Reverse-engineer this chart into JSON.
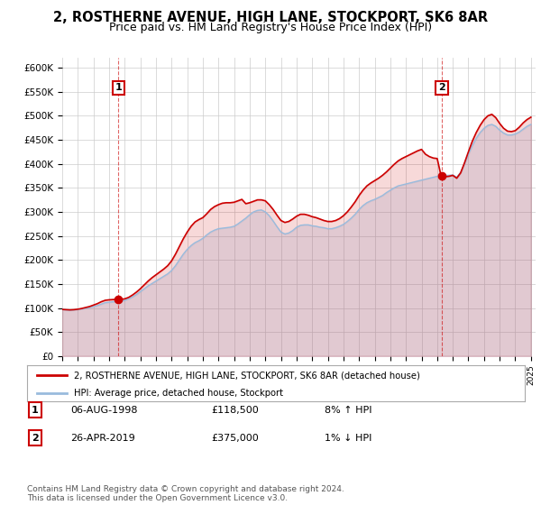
{
  "title": "2, ROSTHERNE AVENUE, HIGH LANE, STOCKPORT, SK6 8AR",
  "subtitle": "Price paid vs. HM Land Registry's House Price Index (HPI)",
  "title_fontsize": 10.5,
  "subtitle_fontsize": 9,
  "background_color": "#ffffff",
  "plot_bg_color": "#ffffff",
  "grid_color": "#cccccc",
  "ylim": [
    0,
    620000
  ],
  "yticks": [
    0,
    50000,
    100000,
    150000,
    200000,
    250000,
    300000,
    350000,
    400000,
    450000,
    500000,
    550000,
    600000
  ],
  "ytick_labels": [
    "£0",
    "£50K",
    "£100K",
    "£150K",
    "£200K",
    "£250K",
    "£300K",
    "£350K",
    "£400K",
    "£450K",
    "£500K",
    "£550K",
    "£600K"
  ],
  "sale1_year": 1998.6,
  "sale1_price": 118500,
  "sale2_year": 2019.3,
  "sale2_price": 375000,
  "sale_color": "#cc0000",
  "hpi_color": "#99bbdd",
  "house_color": "#cc0000",
  "legend_house": "2, ROSTHERNE AVENUE, HIGH LANE, STOCKPORT, SK6 8AR (detached house)",
  "legend_hpi": "HPI: Average price, detached house, Stockport",
  "annotation1_box": "1",
  "annotation1_date": "06-AUG-1998",
  "annotation1_price": "£118,500",
  "annotation1_hpi": "8% ↑ HPI",
  "annotation2_box": "2",
  "annotation2_date": "26-APR-2019",
  "annotation2_price": "£375,000",
  "annotation2_hpi": "1% ↓ HPI",
  "footer": "Contains HM Land Registry data © Crown copyright and database right 2024.\nThis data is licensed under the Open Government Licence v3.0.",
  "hpi_data": [
    [
      1995.0,
      97000
    ],
    [
      1995.25,
      96000
    ],
    [
      1995.5,
      95500
    ],
    [
      1995.75,
      96000
    ],
    [
      1996.0,
      97000
    ],
    [
      1996.25,
      98000
    ],
    [
      1996.5,
      99500
    ],
    [
      1996.75,
      101000
    ],
    [
      1997.0,
      103000
    ],
    [
      1997.25,
      105000
    ],
    [
      1997.5,
      108000
    ],
    [
      1997.75,
      111000
    ],
    [
      1998.0,
      112000
    ],
    [
      1998.25,
      113000
    ],
    [
      1998.5,
      113500
    ],
    [
      1998.75,
      114000
    ],
    [
      1999.0,
      116000
    ],
    [
      1999.25,
      119000
    ],
    [
      1999.5,
      123000
    ],
    [
      1999.75,
      128000
    ],
    [
      2000.0,
      134000
    ],
    [
      2000.25,
      140000
    ],
    [
      2000.5,
      146000
    ],
    [
      2000.75,
      151000
    ],
    [
      2001.0,
      156000
    ],
    [
      2001.25,
      161000
    ],
    [
      2001.5,
      166000
    ],
    [
      2001.75,
      171000
    ],
    [
      2002.0,
      178000
    ],
    [
      2002.25,
      188000
    ],
    [
      2002.5,
      200000
    ],
    [
      2002.75,
      212000
    ],
    [
      2003.0,
      222000
    ],
    [
      2003.25,
      230000
    ],
    [
      2003.5,
      236000
    ],
    [
      2003.75,
      240000
    ],
    [
      2004.0,
      245000
    ],
    [
      2004.25,
      252000
    ],
    [
      2004.5,
      258000
    ],
    [
      2004.75,
      262000
    ],
    [
      2005.0,
      265000
    ],
    [
      2005.25,
      266000
    ],
    [
      2005.5,
      267000
    ],
    [
      2005.75,
      268000
    ],
    [
      2006.0,
      270000
    ],
    [
      2006.25,
      275000
    ],
    [
      2006.5,
      281000
    ],
    [
      2006.75,
      287000
    ],
    [
      2007.0,
      294000
    ],
    [
      2007.25,
      300000
    ],
    [
      2007.5,
      303000
    ],
    [
      2007.75,
      304000
    ],
    [
      2008.0,
      300000
    ],
    [
      2008.25,
      292000
    ],
    [
      2008.5,
      281000
    ],
    [
      2008.75,
      269000
    ],
    [
      2009.0,
      258000
    ],
    [
      2009.25,
      254000
    ],
    [
      2009.5,
      256000
    ],
    [
      2009.75,
      261000
    ],
    [
      2010.0,
      268000
    ],
    [
      2010.25,
      272000
    ],
    [
      2010.5,
      273000
    ],
    [
      2010.75,
      273000
    ],
    [
      2011.0,
      271000
    ],
    [
      2011.25,
      270000
    ],
    [
      2011.5,
      268000
    ],
    [
      2011.75,
      267000
    ],
    [
      2012.0,
      265000
    ],
    [
      2012.25,
      265000
    ],
    [
      2012.5,
      267000
    ],
    [
      2012.75,
      270000
    ],
    [
      2013.0,
      274000
    ],
    [
      2013.25,
      280000
    ],
    [
      2013.5,
      287000
    ],
    [
      2013.75,
      295000
    ],
    [
      2014.0,
      305000
    ],
    [
      2014.25,
      313000
    ],
    [
      2014.5,
      319000
    ],
    [
      2014.75,
      323000
    ],
    [
      2015.0,
      326000
    ],
    [
      2015.25,
      330000
    ],
    [
      2015.5,
      334000
    ],
    [
      2015.75,
      340000
    ],
    [
      2016.0,
      345000
    ],
    [
      2016.25,
      350000
    ],
    [
      2016.5,
      354000
    ],
    [
      2016.75,
      356000
    ],
    [
      2017.0,
      358000
    ],
    [
      2017.25,
      360000
    ],
    [
      2017.5,
      362000
    ],
    [
      2017.75,
      364000
    ],
    [
      2018.0,
      366000
    ],
    [
      2018.25,
      368000
    ],
    [
      2018.5,
      370000
    ],
    [
      2018.75,
      372000
    ],
    [
      2019.0,
      374000
    ],
    [
      2019.25,
      376000
    ],
    [
      2019.5,
      376000
    ],
    [
      2019.75,
      376000
    ],
    [
      2020.0,
      377000
    ],
    [
      2020.25,
      372000
    ],
    [
      2020.5,
      382000
    ],
    [
      2020.75,
      400000
    ],
    [
      2021.0,
      420000
    ],
    [
      2021.25,
      438000
    ],
    [
      2021.5,
      453000
    ],
    [
      2021.75,
      465000
    ],
    [
      2022.0,
      474000
    ],
    [
      2022.25,
      480000
    ],
    [
      2022.5,
      482000
    ],
    [
      2022.75,
      478000
    ],
    [
      2023.0,
      470000
    ],
    [
      2023.25,
      464000
    ],
    [
      2023.5,
      460000
    ],
    [
      2023.75,
      460000
    ],
    [
      2024.0,
      462000
    ],
    [
      2024.25,
      466000
    ],
    [
      2024.5,
      472000
    ],
    [
      2024.75,
      478000
    ],
    [
      2025.0,
      482000
    ]
  ],
  "house_data": [
    [
      1995.0,
      97000
    ],
    [
      1995.25,
      96500
    ],
    [
      1995.5,
      96000
    ],
    [
      1995.75,
      96500
    ],
    [
      1996.0,
      97500
    ],
    [
      1996.25,
      99000
    ],
    [
      1996.5,
      101000
    ],
    [
      1996.75,
      103000
    ],
    [
      1997.0,
      106000
    ],
    [
      1997.25,
      109000
    ],
    [
      1997.5,
      113000
    ],
    [
      1997.75,
      116000
    ],
    [
      1998.0,
      117000
    ],
    [
      1998.25,
      117500
    ],
    [
      1998.5,
      118000
    ],
    [
      1998.6,
      118500
    ],
    [
      1998.75,
      118000
    ],
    [
      1999.0,
      119000
    ],
    [
      1999.25,
      122000
    ],
    [
      1999.5,
      127000
    ],
    [
      1999.75,
      133000
    ],
    [
      2000.0,
      140000
    ],
    [
      2000.25,
      148000
    ],
    [
      2000.5,
      156000
    ],
    [
      2000.75,
      163000
    ],
    [
      2001.0,
      169000
    ],
    [
      2001.25,
      175000
    ],
    [
      2001.5,
      181000
    ],
    [
      2001.75,
      188000
    ],
    [
      2002.0,
      198000
    ],
    [
      2002.25,
      212000
    ],
    [
      2002.5,
      228000
    ],
    [
      2002.75,
      244000
    ],
    [
      2003.0,
      258000
    ],
    [
      2003.25,
      270000
    ],
    [
      2003.5,
      279000
    ],
    [
      2003.75,
      284000
    ],
    [
      2004.0,
      288000
    ],
    [
      2004.25,
      296000
    ],
    [
      2004.5,
      305000
    ],
    [
      2004.75,
      311000
    ],
    [
      2005.0,
      315000
    ],
    [
      2005.25,
      318000
    ],
    [
      2005.5,
      319000
    ],
    [
      2005.75,
      319000
    ],
    [
      2006.0,
      320000
    ],
    [
      2006.25,
      323000
    ],
    [
      2006.5,
      326000
    ],
    [
      2006.75,
      317000
    ],
    [
      2007.0,
      319000
    ],
    [
      2007.25,
      322000
    ],
    [
      2007.5,
      325000
    ],
    [
      2007.75,
      325000
    ],
    [
      2008.0,
      323000
    ],
    [
      2008.25,
      315000
    ],
    [
      2008.5,
      305000
    ],
    [
      2008.75,
      293000
    ],
    [
      2009.0,
      282000
    ],
    [
      2009.25,
      278000
    ],
    [
      2009.5,
      280000
    ],
    [
      2009.75,
      285000
    ],
    [
      2010.0,
      291000
    ],
    [
      2010.25,
      295000
    ],
    [
      2010.5,
      295000
    ],
    [
      2010.75,
      293000
    ],
    [
      2011.0,
      290000
    ],
    [
      2011.25,
      288000
    ],
    [
      2011.5,
      285000
    ],
    [
      2011.75,
      282000
    ],
    [
      2012.0,
      280000
    ],
    [
      2012.25,
      280000
    ],
    [
      2012.5,
      282000
    ],
    [
      2012.75,
      286000
    ],
    [
      2013.0,
      292000
    ],
    [
      2013.25,
      300000
    ],
    [
      2013.5,
      310000
    ],
    [
      2013.75,
      321000
    ],
    [
      2014.0,
      334000
    ],
    [
      2014.25,
      345000
    ],
    [
      2014.5,
      354000
    ],
    [
      2014.75,
      360000
    ],
    [
      2015.0,
      365000
    ],
    [
      2015.25,
      370000
    ],
    [
      2015.5,
      376000
    ],
    [
      2015.75,
      383000
    ],
    [
      2016.0,
      391000
    ],
    [
      2016.25,
      399000
    ],
    [
      2016.5,
      406000
    ],
    [
      2016.75,
      411000
    ],
    [
      2017.0,
      415000
    ],
    [
      2017.25,
      419000
    ],
    [
      2017.5,
      423000
    ],
    [
      2017.75,
      427000
    ],
    [
      2018.0,
      430000
    ],
    [
      2018.25,
      420000
    ],
    [
      2018.5,
      415000
    ],
    [
      2018.75,
      412000
    ],
    [
      2019.0,
      411000
    ],
    [
      2019.25,
      375000
    ],
    [
      2019.5,
      373000
    ],
    [
      2019.75,
      374000
    ],
    [
      2020.0,
      376000
    ],
    [
      2020.25,
      370000
    ],
    [
      2020.5,
      381000
    ],
    [
      2020.75,
      402000
    ],
    [
      2021.0,
      425000
    ],
    [
      2021.25,
      447000
    ],
    [
      2021.5,
      465000
    ],
    [
      2021.75,
      480000
    ],
    [
      2022.0,
      492000
    ],
    [
      2022.25,
      500000
    ],
    [
      2022.5,
      503000
    ],
    [
      2022.75,
      496000
    ],
    [
      2023.0,
      484000
    ],
    [
      2023.25,
      474000
    ],
    [
      2023.5,
      468000
    ],
    [
      2023.75,
      467000
    ],
    [
      2024.0,
      469000
    ],
    [
      2024.25,
      476000
    ],
    [
      2024.5,
      485000
    ],
    [
      2024.75,
      492000
    ],
    [
      2025.0,
      497000
    ]
  ]
}
